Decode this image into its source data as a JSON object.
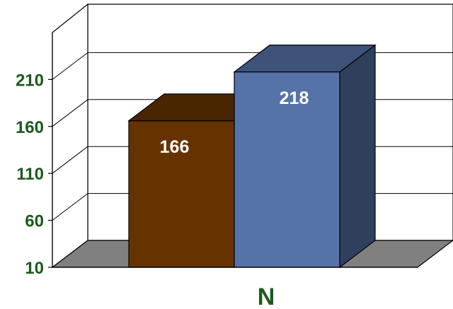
{
  "chart_data": {
    "type": "bar",
    "categories": [
      "N"
    ],
    "series": [
      {
        "values": [
          166
        ],
        "color": "#663300"
      },
      {
        "values": [
          218
        ],
        "color": "#5573a8"
      }
    ],
    "value_labels": [
      "166",
      "218"
    ],
    "ylim": [
      10,
      260
    ],
    "yticks": [
      10,
      60,
      110,
      160,
      210
    ],
    "ytick_labels": [
      "10",
      "60",
      "110",
      "160",
      "210"
    ],
    "grid": true,
    "style": "3d"
  }
}
